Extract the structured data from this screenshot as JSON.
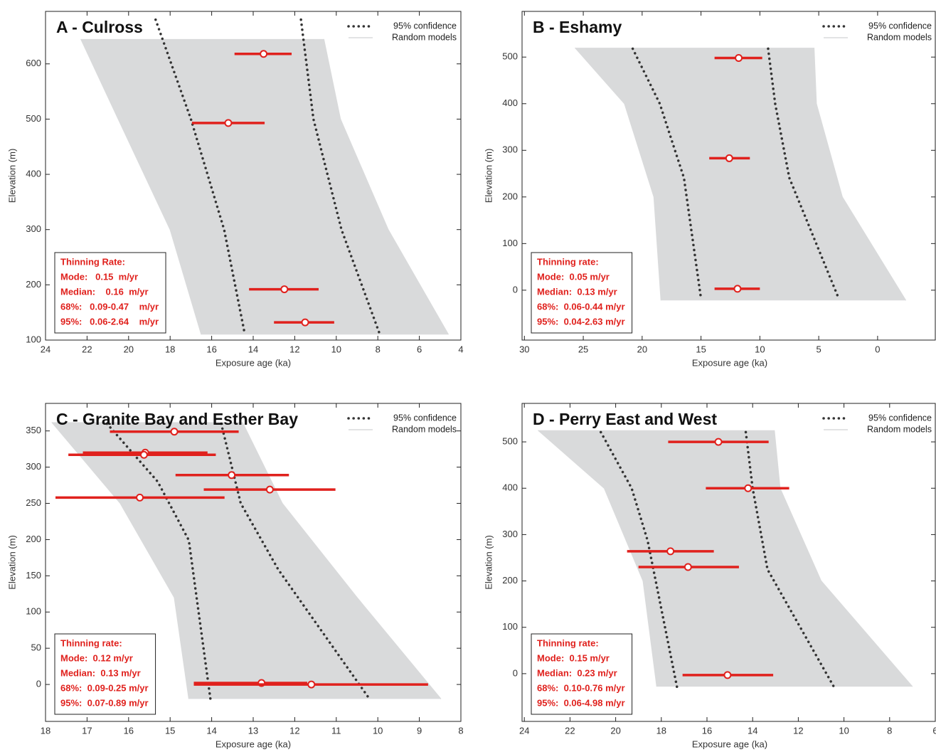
{
  "chart_data": [
    {
      "type": "scatter",
      "title": "A - Culross",
      "xlabel": "Exposure age (ka)",
      "ylabel": "Elevation (m)",
      "xlim": [
        24,
        4
      ],
      "ylim": [
        100,
        695
      ],
      "xticks": [
        24,
        22,
        20,
        18,
        16,
        14,
        12,
        10,
        8,
        6,
        4
      ],
      "yticks": [
        100,
        200,
        300,
        400,
        500,
        600
      ],
      "series": [
        {
          "name": "95% confidence",
          "color": "#333333",
          "style": "dotted",
          "lines": [
            {
              "x": [
                18.7,
                17.0,
                15.4,
                14.4
              ],
              "y": [
                680,
                500,
                300,
                110
              ]
            },
            {
              "x": [
                11.7,
                11.1,
                9.75,
                7.9
              ],
              "y": [
                680,
                500,
                300,
                110
              ]
            }
          ]
        },
        {
          "name": "Random models",
          "color": "#d9dadb",
          "style": "band",
          "lines": [
            {
              "x": [
                22.3,
                20.5,
                18.0,
                16.5
              ],
              "y": [
                645,
                500,
                300,
                110
              ]
            },
            {
              "x": [
                10.6,
                9.8,
                7.5,
                4.6
              ],
              "y": [
                645,
                500,
                300,
                110
              ]
            }
          ]
        }
      ],
      "points": {
        "color": "#e0211d",
        "age": [
          13.5,
          15.2,
          12.5,
          11.5
        ],
        "age_min": [
          14.9,
          16.95,
          14.2,
          13.0
        ],
        "age_max": [
          12.15,
          13.45,
          10.85,
          10.1
        ],
        "elevation": [
          618,
          493,
          192,
          132
        ]
      },
      "box": {
        "title": "Thinning Rate:",
        "lines": [
          "Mode:   0.15  m/yr",
          "Median:    0.16  m/yr",
          "68%:   0.09-0.47    m/yr",
          "95%:   0.06-2.64    m/yr"
        ]
      }
    },
    {
      "type": "scatter",
      "title": "B - Eshamy",
      "xlabel": "Exposure age (ka)",
      "ylabel": "Elevation (m)",
      "xlim": [
        30.2,
        -4.9
      ],
      "ylim": [
        -107,
        598
      ],
      "xticks": [
        30,
        25,
        20,
        15,
        10,
        5,
        0
      ],
      "yticks": [
        0,
        100,
        200,
        300,
        400,
        500
      ],
      "series": [
        {
          "name": "95% confidence",
          "color": "#333333",
          "style": "dotted",
          "lines": [
            {
              "x": [
                20.8,
                18.5,
                16.45,
                15.0
              ],
              "y": [
                518,
                400,
                241,
                -18
              ]
            },
            {
              "x": [
                9.3,
                8.7,
                7.5,
                3.3
              ],
              "y": [
                518,
                400,
                241,
                -18
              ]
            }
          ]
        },
        {
          "name": "Random models",
          "color": "#d9dadb",
          "style": "band",
          "lines": [
            {
              "x": [
                25.7,
                21.5,
                19.0,
                18.4
              ],
              "y": [
                520,
                400,
                200,
                -22
              ]
            },
            {
              "x": [
                5.4,
                5.2,
                3.0,
                -2.4
              ],
              "y": [
                520,
                400,
                200,
                -22
              ]
            }
          ]
        }
      ],
      "points": {
        "color": "#e0211d",
        "age": [
          11.8,
          12.6,
          11.9
        ],
        "age_min": [
          13.85,
          14.3,
          13.85
        ],
        "age_max": [
          9.8,
          10.85,
          10.0
        ],
        "elevation": [
          498,
          283,
          3
        ]
      },
      "box": {
        "title": "Thinning rate:",
        "lines": [
          "Mode:  0.05 m/yr",
          "Median:  0.13 m/yr",
          "68%:  0.06-0.44 m/yr",
          "95%:  0.04-2.63 m/yr"
        ]
      }
    },
    {
      "type": "scatter",
      "title": "C - Granite Bay and Esther Bay",
      "xlabel": "Exposure age (ka)",
      "ylabel": "Elevation (m)",
      "xlim": [
        18,
        8
      ],
      "ylim": [
        -51,
        388
      ],
      "xticks": [
        18,
        17,
        16,
        15,
        14,
        13,
        12,
        11,
        10,
        9,
        8
      ],
      "yticks": [
        0,
        50,
        100,
        150,
        200,
        250,
        300,
        350
      ],
      "series": [
        {
          "name": "95% confidence",
          "color": "#333333",
          "style": "dotted",
          "lines": [
            {
              "x": [
                16.52,
                15.3,
                14.55,
                14.03
              ],
              "y": [
                360,
                280,
                199,
                -20
              ]
            },
            {
              "x": [
                13.77,
                13.3,
                12.4,
                10.2
              ],
              "y": [
                360,
                250,
                159,
                -20
              ]
            }
          ]
        },
        {
          "name": "Random models",
          "color": "#d9dadb",
          "style": "band",
          "lines": [
            {
              "x": [
                17.85,
                16.2,
                14.9,
                14.55
              ],
              "y": [
                362,
                250,
                120,
                -20
              ]
            },
            {
              "x": [
                13.26,
                12.3,
                10.5,
                8.48
              ],
              "y": [
                362,
                250,
                120,
                -20
              ]
            }
          ]
        }
      ],
      "points": {
        "color": "#e0211d",
        "age": [
          14.9,
          15.6,
          15.63,
          13.52,
          12.6,
          15.73,
          12.8,
          11.6
        ],
        "age_min": [
          16.45,
          17.1,
          17.45,
          14.87,
          14.19,
          17.76,
          14.43,
          14.43
        ],
        "age_max": [
          13.35,
          14.1,
          13.9,
          12.14,
          11.02,
          13.69,
          11.7,
          8.79
        ],
        "elevation": [
          349,
          320,
          317,
          289,
          269,
          258,
          2,
          0
        ]
      },
      "box": {
        "title": "Thinning rate:",
        "lines": [
          "Mode:  0.12 m/yr",
          "Median:  0.13 m/yr",
          "68%:  0.09-0.25 m/yr",
          "95%:  0.07-0.89 m/yr"
        ]
      }
    },
    {
      "type": "scatter",
      "title": "D - Perry East and West",
      "xlabel": "Exposure age (ka)",
      "ylabel": "Elevation (m)",
      "xlim": [
        24.1,
        6
      ],
      "ylim": [
        -103,
        583
      ],
      "xticks": [
        24,
        22,
        20,
        18,
        16,
        14,
        12,
        10,
        8,
        6
      ],
      "yticks": [
        0,
        100,
        200,
        300,
        400,
        500
      ],
      "series": [
        {
          "name": "95% confidence",
          "color": "#333333",
          "style": "dotted",
          "lines": [
            {
              "x": [
                20.65,
                19.3,
                18.6,
                17.3
              ],
              "y": [
                521,
                400,
                287,
                -32
              ]
            },
            {
              "x": [
                14.3,
                14.0,
                13.35,
                10.4
              ],
              "y": [
                521,
                400,
                225,
                -32
              ]
            }
          ]
        },
        {
          "name": "Random models",
          "color": "#d9dadb",
          "style": "band",
          "lines": [
            {
              "x": [
                23.4,
                20.5,
                18.8,
                18.2
              ],
              "y": [
                525,
                400,
                200,
                -28
              ]
            },
            {
              "x": [
                13.05,
                12.8,
                11.0,
                7.0
              ],
              "y": [
                525,
                400,
                200,
                -28
              ]
            }
          ]
        }
      ],
      "points": {
        "color": "#e0211d",
        "age": [
          15.5,
          14.2,
          17.6,
          16.83,
          15.1
        ],
        "age_min": [
          17.7,
          16.05,
          19.5,
          19.0,
          17.07
        ],
        "age_max": [
          13.3,
          12.4,
          15.7,
          14.6,
          13.1
        ],
        "elevation": [
          500,
          400,
          264,
          230,
          -3
        ]
      },
      "box": {
        "title": "Thinning rate:",
        "lines": [
          "Mode:  0.15 m/yr",
          "Median:  0.23 m/yr",
          "68%:  0.10-0.76 m/yr",
          "95%:  0.06-4.98 m/yr"
        ]
      }
    }
  ]
}
